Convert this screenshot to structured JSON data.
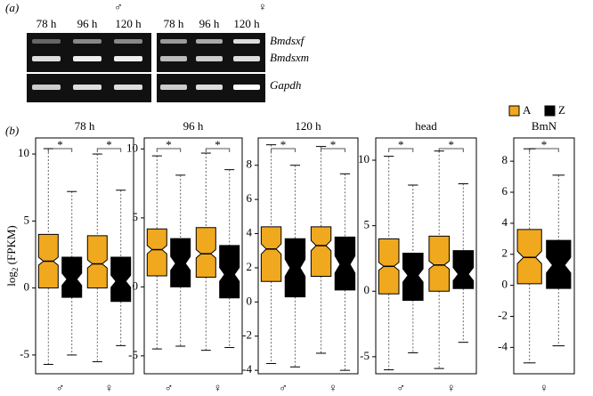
{
  "gel": {
    "label": "(a)",
    "male": "♂",
    "female": "♀",
    "male_lanes": [
      "78 h",
      "96 h",
      "120 h"
    ],
    "female_lanes": [
      "78 h",
      "96 h",
      "120 h"
    ],
    "genes": [
      "Bmdsxf",
      "Bmdsxm",
      "Gapdh"
    ]
  },
  "panel_b_label": "(b)",
  "chart_data": [
    {
      "type": "box",
      "title": "78 h",
      "ylabel": {
        "base": "log",
        "sub": "2",
        "rest": " (FPKM)"
      },
      "categories": [
        "♂",
        "♀"
      ],
      "annotations": [
        "*",
        "*"
      ],
      "ylim": [
        -6.4,
        11.2
      ],
      "yticks": [
        -5,
        0,
        5,
        10
      ],
      "series": [
        {
          "name": "A",
          "color": "#f0a81e",
          "values": [
            {
              "low": -5.7,
              "q1": 0,
              "notch_low": 1.7,
              "median": 2.0,
              "notch_high": 2.3,
              "q3": 4.0,
              "high": 10.4
            },
            {
              "low": -5.5,
              "q1": 0,
              "notch_low": 1.5,
              "median": 1.8,
              "notch_high": 2.1,
              "q3": 3.9,
              "high": 10.0
            }
          ]
        },
        {
          "name": "Z",
          "color": "#000000",
          "values": [
            {
              "low": -5.0,
              "q1": -0.7,
              "notch_low": 0.2,
              "median": 0.65,
              "notch_high": 1.1,
              "q3": 2.3,
              "high": 7.2
            },
            {
              "low": -4.3,
              "q1": -1.0,
              "notch_low": 0.05,
              "median": 0.5,
              "notch_high": 0.95,
              "q3": 2.3,
              "high": 7.3
            }
          ]
        }
      ]
    },
    {
      "type": "box",
      "title": "96 h",
      "categories": [
        "♂",
        "♀"
      ],
      "annotations": [
        "*",
        "*"
      ],
      "ylim": [
        -6.3,
        10.8
      ],
      "yticks": [
        -5,
        0,
        5,
        10
      ],
      "series": [
        {
          "name": "A",
          "color": "#f0a81e",
          "values": [
            {
              "low": -4.5,
              "q1": 0.8,
              "notch_low": 2.4,
              "median": 2.7,
              "notch_high": 3.0,
              "q3": 4.2,
              "high": 9.5
            },
            {
              "low": -4.6,
              "q1": 0.7,
              "notch_low": 2.1,
              "median": 2.4,
              "notch_high": 2.7,
              "q3": 4.3,
              "high": 9.7
            }
          ]
        },
        {
          "name": "Z",
          "color": "#000000",
          "values": [
            {
              "low": -4.3,
              "q1": 0,
              "notch_low": 1.2,
              "median": 1.7,
              "notch_high": 2.2,
              "q3": 3.5,
              "high": 8.1
            },
            {
              "low": -4.4,
              "q1": -0.8,
              "notch_low": 0.4,
              "median": 0.9,
              "notch_high": 1.4,
              "q3": 3.0,
              "high": 8.5
            }
          ]
        }
      ]
    },
    {
      "type": "box",
      "title": "120 h",
      "categories": [
        "♂",
        "♀"
      ],
      "annotations": [
        "*",
        "*"
      ],
      "ylim": [
        -4.2,
        9.6
      ],
      "yticks": [
        -4,
        -2,
        0,
        2,
        4,
        6,
        8
      ],
      "series": [
        {
          "name": "A",
          "color": "#f0a81e",
          "values": [
            {
              "low": -3.6,
              "q1": 1.2,
              "notch_low": 2.8,
              "median": 3.1,
              "notch_high": 3.4,
              "q3": 4.4,
              "high": 9.2
            },
            {
              "low": -3.0,
              "q1": 1.5,
              "notch_low": 3.0,
              "median": 3.3,
              "notch_high": 3.6,
              "q3": 4.4,
              "high": 9.1
            }
          ]
        },
        {
          "name": "Z",
          "color": "#000000",
          "values": [
            {
              "low": -3.8,
              "q1": 0.3,
              "notch_low": 1.5,
              "median": 2.0,
              "notch_high": 2.5,
              "q3": 3.7,
              "high": 8.0
            },
            {
              "low": -4.0,
              "q1": 0.7,
              "notch_low": 1.7,
              "median": 2.2,
              "notch_high": 2.7,
              "q3": 3.8,
              "high": 7.5
            }
          ]
        }
      ]
    },
    {
      "type": "box",
      "title": "head",
      "categories": [
        "♂",
        "♀"
      ],
      "annotations": [
        "*",
        "*"
      ],
      "ylim": [
        -6.3,
        11.7
      ],
      "yticks": [
        -5,
        0,
        5,
        10
      ],
      "series": [
        {
          "name": "A",
          "color": "#f0a81e",
          "values": [
            {
              "low": -6.0,
              "q1": -0.2,
              "notch_low": 1.6,
              "median": 1.9,
              "notch_high": 2.2,
              "q3": 4.0,
              "high": 10.3
            },
            {
              "low": -5.9,
              "q1": 0,
              "notch_low": 1.7,
              "median": 2.0,
              "notch_high": 2.3,
              "q3": 4.2,
              "high": 10.7
            }
          ]
        },
        {
          "name": "Z",
          "color": "#000000",
          "values": [
            {
              "low": -4.7,
              "q1": -0.7,
              "notch_low": 0.7,
              "median": 1.2,
              "notch_high": 1.7,
              "q3": 2.9,
              "high": 8.1
            },
            {
              "low": -3.9,
              "q1": 0.2,
              "notch_low": 0.8,
              "median": 1.3,
              "notch_high": 1.8,
              "q3": 3.1,
              "high": 8.2
            }
          ]
        }
      ]
    },
    {
      "type": "box",
      "title": "BmN",
      "categories": [
        "♀"
      ],
      "annotations": [
        "*"
      ],
      "ylim": [
        -5.7,
        9.5
      ],
      "yticks": [
        -4,
        -2,
        0,
        2,
        4,
        6,
        8
      ],
      "series": [
        {
          "name": "A",
          "color": "#f0a81e",
          "values": [
            {
              "low": -5.0,
              "q1": 0.1,
              "notch_low": 1.4,
              "median": 1.8,
              "notch_high": 2.2,
              "q3": 3.6,
              "high": 8.8
            }
          ]
        },
        {
          "name": "Z",
          "color": "#000000",
          "values": [
            {
              "low": -3.9,
              "q1": -0.2,
              "notch_low": 0.8,
              "median": 1.3,
              "notch_high": 1.8,
              "q3": 2.9,
              "high": 7.1
            }
          ]
        }
      ]
    }
  ]
}
